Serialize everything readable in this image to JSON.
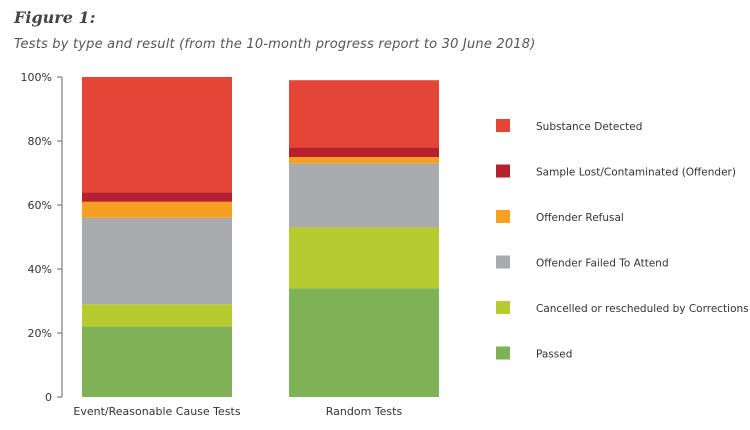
{
  "figure": {
    "label": "Figure 1:",
    "subtitle": "Tests by type and result (from the 10-month progress report to 30 June 2018)"
  },
  "chart_data": {
    "type": "bar",
    "stacked": true,
    "categories": [
      "Event/Reasonable Cause Tests",
      "Random Tests"
    ],
    "ylim": [
      0,
      100
    ],
    "yticks": [
      "0",
      "20%",
      "40%",
      "60%",
      "80%",
      "100%"
    ],
    "ytick_values": [
      0,
      20,
      40,
      60,
      80,
      100
    ],
    "legend_position": "right",
    "series": [
      {
        "name": "Passed",
        "color": "#7fb256",
        "values": [
          22,
          34
        ]
      },
      {
        "name": "Cancelled or rescheduled by Corrections",
        "color": "#b5cb2f",
        "values": [
          7,
          19
        ]
      },
      {
        "name": "Offender Failed To Attend",
        "color": "#a9abae",
        "values": [
          27,
          20
        ]
      },
      {
        "name": "Offender Refusal",
        "color": "#f5a023",
        "values": [
          5,
          2
        ]
      },
      {
        "name": "Sample Lost/Contaminated (Offender)",
        "color": "#b5212e",
        "values": [
          3,
          3
        ]
      },
      {
        "name": "Substance Detected",
        "color": "#e54536",
        "values": [
          36,
          21
        ]
      }
    ]
  }
}
